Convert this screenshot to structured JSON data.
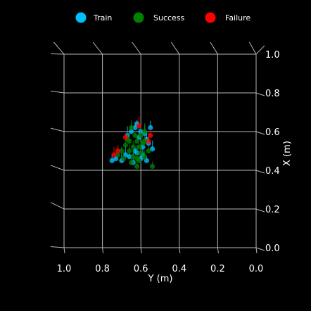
{
  "chart_data": {
    "type": "scatter",
    "projection": "3d",
    "xlabel": "Y (m)",
    "ylabel": "X (m)",
    "xlim": [
      1.0,
      0.0
    ],
    "ylim": [
      0.0,
      1.0
    ],
    "x_ticks": [
      "1.0",
      "0.8",
      "0.6",
      "0.4",
      "0.2",
      "0.0"
    ],
    "y_ticks": [
      "0.0",
      "0.2",
      "0.4",
      "0.6",
      "0.8",
      "1.0"
    ],
    "grid": true,
    "legend_position": "top",
    "series": [
      {
        "name": "Train",
        "color": "#00bfff",
        "points": [
          [
            0.57,
            0.45
          ],
          [
            0.6,
            0.46
          ],
          [
            0.62,
            0.49
          ],
          [
            0.59,
            0.52
          ],
          [
            0.56,
            0.54
          ],
          [
            0.61,
            0.57
          ],
          [
            0.58,
            0.59
          ],
          [
            0.55,
            0.62
          ],
          [
            0.63,
            0.62
          ],
          [
            0.66,
            0.47
          ],
          [
            0.68,
            0.48
          ],
          [
            0.7,
            0.45
          ],
          [
            0.75,
            0.45
          ],
          [
            0.73,
            0.46
          ],
          [
            0.64,
            0.44
          ],
          [
            0.54,
            0.51
          ],
          [
            0.57,
            0.56
          ],
          [
            0.6,
            0.6
          ],
          [
            0.62,
            0.64
          ],
          [
            0.67,
            0.58
          ],
          [
            0.65,
            0.6
          ],
          [
            0.59,
            0.48
          ],
          [
            0.63,
            0.5
          ]
        ]
      },
      {
        "name": "Success",
        "color": "#008000",
        "points": [
          [
            0.64,
            0.52
          ],
          [
            0.62,
            0.55
          ],
          [
            0.6,
            0.58
          ],
          [
            0.58,
            0.6
          ],
          [
            0.66,
            0.5
          ],
          [
            0.68,
            0.53
          ],
          [
            0.7,
            0.5
          ],
          [
            0.72,
            0.48
          ],
          [
            0.61,
            0.45
          ],
          [
            0.58,
            0.47
          ],
          [
            0.54,
            0.42
          ],
          [
            0.62,
            0.42
          ],
          [
            0.65,
            0.44
          ],
          [
            0.67,
            0.56
          ],
          [
            0.59,
            0.54
          ],
          [
            0.63,
            0.58
          ],
          [
            0.6,
            0.49
          ],
          [
            0.65,
            0.62
          ],
          [
            0.69,
            0.46
          ],
          [
            0.56,
            0.5
          ],
          [
            0.62,
            0.46
          ],
          [
            0.66,
            0.55
          ],
          [
            0.64,
            0.47
          ],
          [
            0.58,
            0.55
          ],
          [
            0.61,
            0.52
          ]
        ]
      },
      {
        "name": "Failure",
        "color": "#ff0000",
        "points": [
          [
            0.56,
            0.55
          ],
          [
            0.55,
            0.58
          ],
          [
            0.72,
            0.5
          ],
          [
            0.68,
            0.57
          ],
          [
            0.61,
            0.63
          ],
          [
            0.74,
            0.48
          ]
        ]
      }
    ]
  }
}
